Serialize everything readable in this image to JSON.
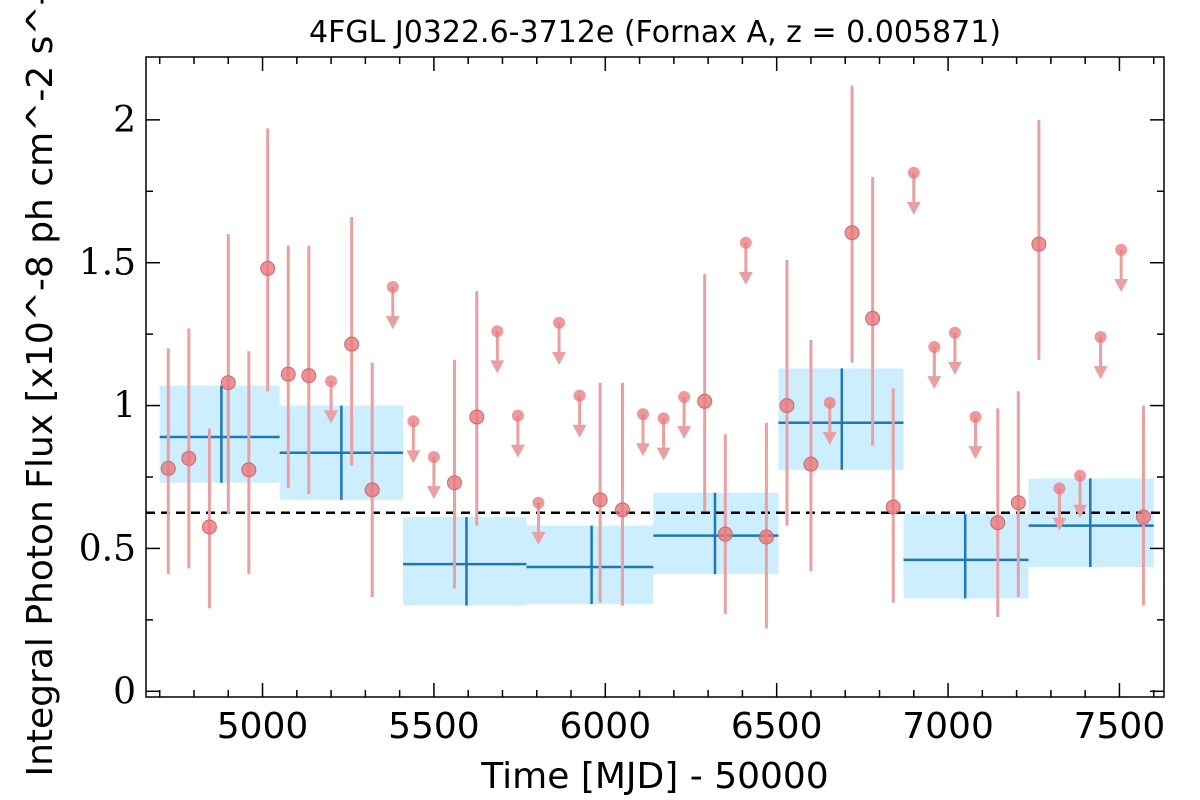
{
  "chart_data": {
    "type": "scatter",
    "title": "4FGL J0322.6-3712e (Fornax A, z = 0.005871)",
    "xlabel": "Time [MJD] - 50000",
    "ylabel": "Integral Photon Flux [x10^-8 ph cm^-2 s^-1]",
    "xlim": [
      4660,
      7630
    ],
    "ylim": [
      -0.02,
      2.22
    ],
    "xticks": [
      5000,
      5500,
      6000,
      6500,
      7000,
      7500
    ],
    "xtick_labels": [
      "5000",
      "5500",
      "6000",
      "6500",
      "7000",
      "7500"
    ],
    "yticks": [
      0,
      0.5,
      1,
      1.5,
      2
    ],
    "ytick_labels": [
      "0",
      "0.5",
      "1",
      "1.5",
      "2"
    ],
    "grid": false,
    "reference_line": {
      "y": 0.625,
      "style": "dashed"
    },
    "colors": {
      "points": "#e8787c",
      "errorbars": "#e8a0a2",
      "bins": "#1f77b4",
      "bin_fill": "#cdeeff",
      "reference": "#000000"
    },
    "series": [
      {
        "kind": "binned",
        "points": [
          {
            "x": 4880,
            "xlo": 4700,
            "xhi": 5050,
            "y": 0.89,
            "ylo": 0.73,
            "yhi": 1.07
          },
          {
            "x": 5230,
            "xlo": 5050,
            "xhi": 5410,
            "y": 0.835,
            "ylo": 0.67,
            "yhi": 1.0
          },
          {
            "x": 5595,
            "xlo": 5410,
            "xhi": 5770,
            "y": 0.445,
            "ylo": 0.3,
            "yhi": 0.61
          },
          {
            "x": 5960,
            "xlo": 5770,
            "xhi": 6140,
            "y": 0.435,
            "ylo": 0.305,
            "yhi": 0.58
          },
          {
            "x": 6320,
            "xlo": 6140,
            "xhi": 6505,
            "y": 0.545,
            "ylo": 0.41,
            "yhi": 0.695
          },
          {
            "x": 6690,
            "xlo": 6505,
            "xhi": 6870,
            "y": 0.94,
            "ylo": 0.775,
            "yhi": 1.13
          },
          {
            "x": 7050,
            "xlo": 6870,
            "xhi": 7235,
            "y": 0.46,
            "ylo": 0.325,
            "yhi": 0.62
          },
          {
            "x": 7415,
            "xlo": 7235,
            "xhi": 7600,
            "y": 0.58,
            "ylo": 0.435,
            "yhi": 0.745
          }
        ]
      },
      {
        "kind": "detection",
        "points": [
          {
            "x": 4725,
            "y": 0.78,
            "ylo": 0.41,
            "yhi": 1.2
          },
          {
            "x": 4785,
            "y": 0.815,
            "ylo": 0.43,
            "yhi": 1.27
          },
          {
            "x": 4845,
            "y": 0.575,
            "ylo": 0.29,
            "yhi": 0.92
          },
          {
            "x": 4900,
            "y": 1.08,
            "ylo": 0.62,
            "yhi": 1.6
          },
          {
            "x": 4960,
            "y": 0.775,
            "ylo": 0.41,
            "yhi": 1.19
          },
          {
            "x": 5015,
            "y": 1.48,
            "ylo": 1.05,
            "yhi": 1.97
          },
          {
            "x": 5075,
            "y": 1.11,
            "ylo": 0.71,
            "yhi": 1.56
          },
          {
            "x": 5135,
            "y": 1.105,
            "ylo": 0.69,
            "yhi": 1.56
          },
          {
            "x": 5260,
            "y": 1.215,
            "ylo": 0.79,
            "yhi": 1.66
          },
          {
            "x": 5320,
            "y": 0.705,
            "ylo": 0.33,
            "yhi": 1.15
          },
          {
            "x": 5560,
            "y": 0.73,
            "ylo": 0.36,
            "yhi": 1.16
          },
          {
            "x": 5625,
            "y": 0.96,
            "ylo": 0.58,
            "yhi": 1.4
          },
          {
            "x": 5985,
            "y": 0.67,
            "ylo": 0.31,
            "yhi": 1.08
          },
          {
            "x": 6050,
            "y": 0.635,
            "ylo": 0.3,
            "yhi": 1.08
          },
          {
            "x": 6290,
            "y": 1.015,
            "ylo": 0.63,
            "yhi": 1.46
          },
          {
            "x": 6350,
            "y": 0.55,
            "ylo": 0.27,
            "yhi": 0.9
          },
          {
            "x": 6470,
            "y": 0.54,
            "ylo": 0.22,
            "yhi": 0.94
          },
          {
            "x": 6530,
            "y": 1.0,
            "ylo": 0.58,
            "yhi": 1.51
          },
          {
            "x": 6600,
            "y": 0.795,
            "ylo": 0.42,
            "yhi": 1.23
          },
          {
            "x": 6720,
            "y": 1.605,
            "ylo": 1.15,
            "yhi": 2.12
          },
          {
            "x": 6780,
            "y": 1.305,
            "ylo": 0.86,
            "yhi": 1.8
          },
          {
            "x": 6840,
            "y": 0.645,
            "ylo": 0.31,
            "yhi": 1.06
          },
          {
            "x": 7145,
            "y": 0.59,
            "ylo": 0.26,
            "yhi": 0.99
          },
          {
            "x": 7205,
            "y": 0.66,
            "ylo": 0.33,
            "yhi": 1.05
          },
          {
            "x": 7265,
            "y": 1.565,
            "ylo": 1.16,
            "yhi": 2.0
          },
          {
            "x": 7570,
            "y": 0.61,
            "ylo": 0.3,
            "yhi": 1.0
          }
        ]
      },
      {
        "kind": "upper_limit",
        "points": [
          {
            "x": 5200,
            "y": 1.085
          },
          {
            "x": 5380,
            "y": 1.415
          },
          {
            "x": 5440,
            "y": 0.945
          },
          {
            "x": 5500,
            "y": 0.82
          },
          {
            "x": 5685,
            "y": 1.26
          },
          {
            "x": 5745,
            "y": 0.965
          },
          {
            "x": 5805,
            "y": 0.66
          },
          {
            "x": 5865,
            "y": 1.29
          },
          {
            "x": 5925,
            "y": 1.035
          },
          {
            "x": 6110,
            "y": 0.97
          },
          {
            "x": 6170,
            "y": 0.955
          },
          {
            "x": 6230,
            "y": 1.03
          },
          {
            "x": 6410,
            "y": 1.57
          },
          {
            "x": 6655,
            "y": 1.01
          },
          {
            "x": 6900,
            "y": 1.815
          },
          {
            "x": 6960,
            "y": 1.205
          },
          {
            "x": 7020,
            "y": 1.255
          },
          {
            "x": 7080,
            "y": 0.96
          },
          {
            "x": 7325,
            "y": 0.71
          },
          {
            "x": 7385,
            "y": 0.755
          },
          {
            "x": 7445,
            "y": 1.24
          },
          {
            "x": 7505,
            "y": 1.545
          }
        ]
      }
    ]
  }
}
